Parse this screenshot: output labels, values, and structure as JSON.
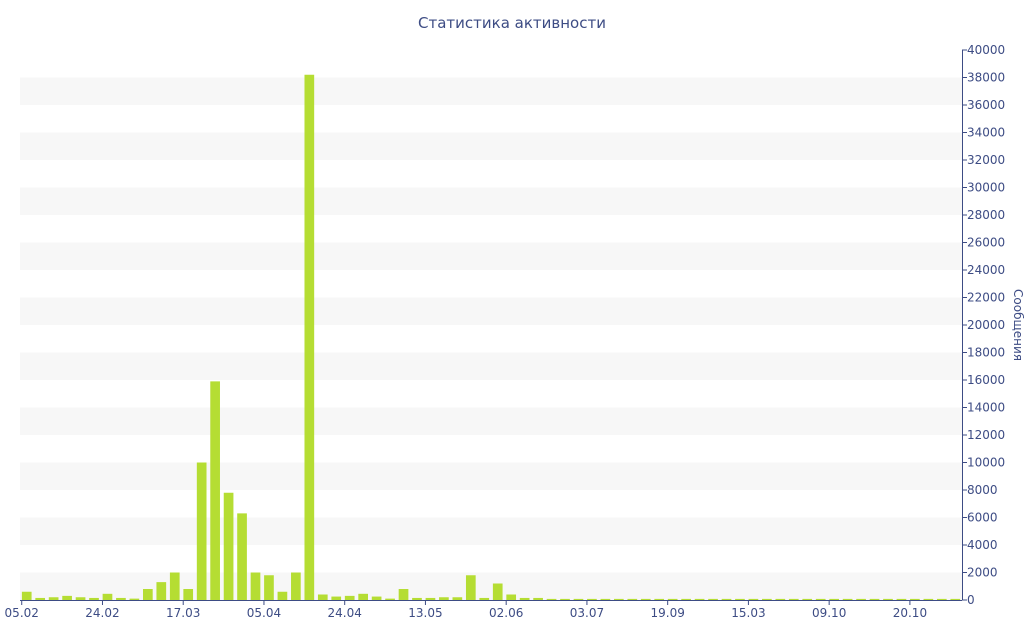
{
  "chart_data": {
    "type": "bar",
    "title": "Статистика активности",
    "ylabel": "Сообщения",
    "xlabel": "",
    "ylim": [
      0,
      40000
    ],
    "yticks": [
      0,
      2000,
      4000,
      6000,
      8000,
      10000,
      12000,
      14000,
      16000,
      18000,
      20000,
      22000,
      24000,
      26000,
      28000,
      30000,
      32000,
      34000,
      36000,
      38000,
      40000
    ],
    "x_tick_labels": [
      {
        "label": "05.02",
        "index": 0
      },
      {
        "label": "24.02",
        "index": 6
      },
      {
        "label": "17.03",
        "index": 12
      },
      {
        "label": "05.04",
        "index": 18
      },
      {
        "label": "24.04",
        "index": 24
      },
      {
        "label": "13.05",
        "index": 30
      },
      {
        "label": "02.06",
        "index": 36
      },
      {
        "label": "03.07",
        "index": 42
      },
      {
        "label": "19.09",
        "index": 48
      },
      {
        "label": "15.03",
        "index": 54
      },
      {
        "label": "09.10",
        "index": 60
      },
      {
        "label": "20.10",
        "index": 66
      }
    ],
    "values": [
      600,
      150,
      200,
      300,
      200,
      150,
      450,
      150,
      100,
      800,
      1300,
      2000,
      800,
      10000,
      15900,
      7800,
      6300,
      2000,
      1800,
      600,
      2000,
      38200,
      400,
      250,
      300,
      450,
      250,
      100,
      800,
      150,
      150,
      200,
      200,
      1800,
      150,
      1200,
      400,
      150,
      150,
      80,
      80,
      80,
      80,
      80,
      80,
      80,
      80,
      80,
      80,
      80,
      80,
      80,
      80,
      80,
      80,
      80,
      80,
      80,
      80,
      80,
      80,
      80,
      80,
      80,
      80,
      80,
      80,
      80,
      80,
      80
    ],
    "grid": "horizontal bands",
    "y_axis_position": "right",
    "colors": {
      "bar": "#b5dd33",
      "band": "#f7f7f7",
      "axis": "#3d4c84",
      "text": "#3d4c84"
    }
  }
}
